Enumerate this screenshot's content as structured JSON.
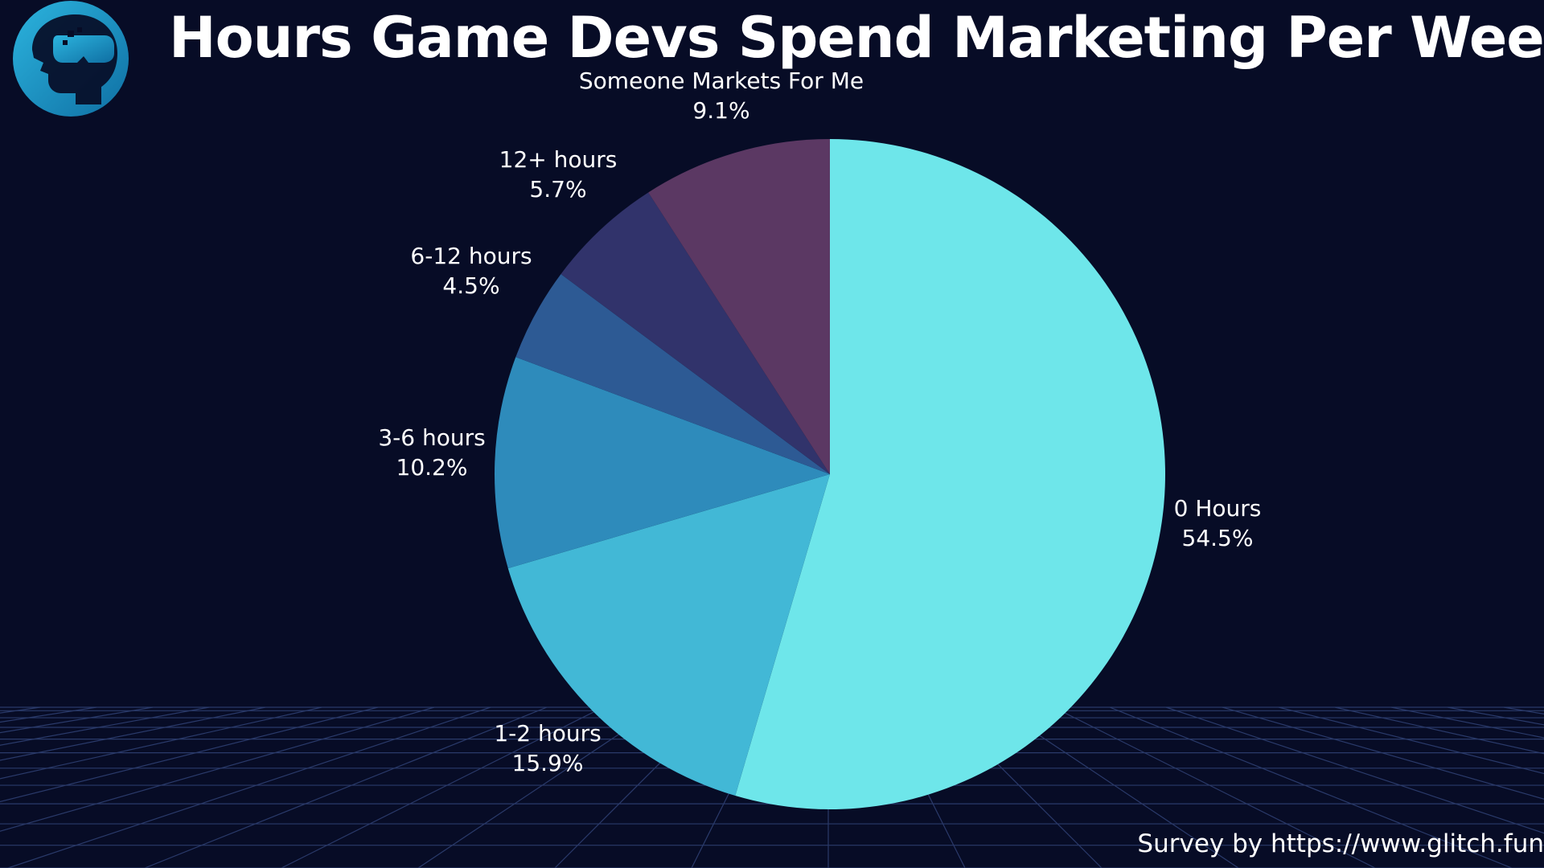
{
  "header": {
    "title": "Hours Game Devs Spend Marketing Per Week"
  },
  "footer": {
    "credit": "Survey by https://www.glitch.fun"
  },
  "logo": {
    "icon": "vr-headset-head-icon",
    "color": "#1f9fd0"
  },
  "background": {
    "color": "#070c26",
    "grid_color": "#2a3a6a"
  },
  "chart_data": {
    "type": "pie",
    "start_angle_deg": 0,
    "direction": "clockwise",
    "slices": [
      {
        "label": "0 Hours",
        "percent_label": "54.5%",
        "value": 54.5,
        "color": "#6ee6ea"
      },
      {
        "label": "1-2 hours",
        "percent_label": "15.9%",
        "value": 15.9,
        "color": "#42b8d6"
      },
      {
        "label": "3-6 hours",
        "percent_label": "10.2%",
        "value": 10.2,
        "color": "#2e8bbb"
      },
      {
        "label": "6-12 hours",
        "percent_label": "4.5%",
        "value": 4.5,
        "color": "#2d5a94"
      },
      {
        "label": "12+ hours",
        "percent_label": "5.7%",
        "value": 5.7,
        "color": "#31336b"
      },
      {
        "label": "Someone Markets For Me",
        "percent_label": "9.1%",
        "value": 9.1,
        "color": "#5b3863"
      }
    ]
  }
}
